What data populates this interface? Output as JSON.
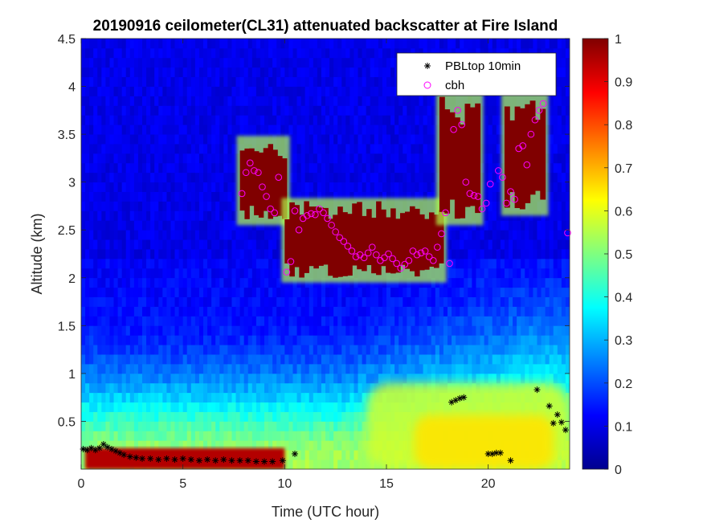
{
  "chart_data": {
    "type": "heatmap",
    "title": "20190916 ceilometer(CL31) attenuated backscatter at Fire Island",
    "xlabel": "Time (UTC hour)",
    "ylabel": "Altitude (km)",
    "xlim": [
      0,
      24
    ],
    "ylim": [
      0,
      4.5
    ],
    "xticks": [
      0,
      5,
      10,
      15,
      20
    ],
    "yticks": [
      0.5,
      1,
      1.5,
      2,
      2.5,
      3,
      3.5,
      4,
      4.5
    ],
    "colorbar": {
      "range": [
        0,
        1
      ],
      "ticks": [
        0,
        0.1,
        0.2,
        0.3,
        0.4,
        0.5,
        0.6,
        0.7,
        0.8,
        0.9,
        1
      ],
      "colormap": "jet"
    },
    "legend": {
      "location": "top-right",
      "entries": [
        {
          "label": "PBLtop 10min",
          "marker": "asterisk",
          "color": "#000000"
        },
        {
          "label": "cbh",
          "marker": "circle",
          "color": "#ff00ff"
        }
      ]
    },
    "series": [
      {
        "name": "PBLtop 10min",
        "x": [
          0.1,
          0.3,
          0.5,
          0.7,
          0.9,
          1.1,
          1.3,
          1.5,
          1.7,
          1.9,
          2.1,
          2.4,
          2.7,
          3.0,
          3.4,
          3.8,
          4.2,
          4.6,
          5.0,
          5.4,
          5.8,
          6.2,
          6.6,
          7.0,
          7.4,
          7.8,
          8.2,
          8.6,
          9.0,
          9.4,
          9.9,
          10.5,
          18.2,
          18.4,
          18.6,
          18.8,
          20.0,
          20.2,
          20.4,
          20.6,
          21.1,
          22.4,
          23.0,
          23.2,
          23.4,
          23.6,
          23.8
        ],
        "y": [
          0.21,
          0.2,
          0.22,
          0.2,
          0.22,
          0.26,
          0.23,
          0.21,
          0.19,
          0.17,
          0.15,
          0.13,
          0.12,
          0.11,
          0.11,
          0.1,
          0.11,
          0.1,
          0.11,
          0.1,
          0.09,
          0.1,
          0.09,
          0.1,
          0.09,
          0.09,
          0.09,
          0.08,
          0.08,
          0.08,
          0.09,
          0.16,
          0.7,
          0.72,
          0.74,
          0.75,
          0.16,
          0.16,
          0.17,
          0.17,
          0.09,
          0.83,
          0.66,
          0.48,
          0.57,
          0.49,
          0.41
        ]
      },
      {
        "name": "cbh",
        "x": [
          7.9,
          8.1,
          8.3,
          8.5,
          8.7,
          8.9,
          9.1,
          9.3,
          9.5,
          9.7,
          10.1,
          10.3,
          10.5,
          10.7,
          10.9,
          11.1,
          11.3,
          11.5,
          11.7,
          11.9,
          12.1,
          12.3,
          12.5,
          12.7,
          12.9,
          13.1,
          13.3,
          13.5,
          13.7,
          13.9,
          14.1,
          14.3,
          14.5,
          14.7,
          14.9,
          15.1,
          15.3,
          15.5,
          15.7,
          15.9,
          16.1,
          16.3,
          16.5,
          16.7,
          16.9,
          17.1,
          17.3,
          17.5,
          17.7,
          17.9,
          18.1,
          18.3,
          18.5,
          18.7,
          18.9,
          19.1,
          19.3,
          19.5,
          19.7,
          19.9,
          20.1,
          20.5,
          20.7,
          20.9,
          21.1,
          21.3,
          21.5,
          21.7,
          21.9,
          22.1,
          22.3,
          22.5,
          22.7,
          23.9
        ],
        "y": [
          2.88,
          3.1,
          3.2,
          3.12,
          3.1,
          2.95,
          2.85,
          2.72,
          2.68,
          3.05,
          2.06,
          2.17,
          2.7,
          2.5,
          2.62,
          2.65,
          2.67,
          2.66,
          2.72,
          2.68,
          2.62,
          2.55,
          2.48,
          2.42,
          2.38,
          2.33,
          2.28,
          2.22,
          2.24,
          2.21,
          2.26,
          2.32,
          2.24,
          2.18,
          2.21,
          2.25,
          2.2,
          2.15,
          2.1,
          2.14,
          2.18,
          2.28,
          2.24,
          2.26,
          2.28,
          2.22,
          2.18,
          2.32,
          2.46,
          2.68,
          2.15,
          3.55,
          3.75,
          3.6,
          3.0,
          2.88,
          2.86,
          2.85,
          2.72,
          2.78,
          2.98,
          3.12,
          3.05,
          2.78,
          2.9,
          2.82,
          3.35,
          3.38,
          3.18,
          3.5,
          3.65,
          3.75,
          3.82,
          2.47
        ]
      }
    ],
    "features": [
      {
        "name": "surface-layer",
        "x": [
          0.2,
          10.0
        ],
        "y": [
          0.0,
          0.22
        ],
        "value": 0.95
      },
      {
        "name": "cloud-layer-a",
        "x": [
          7.8,
          10.1
        ],
        "y": [
          2.6,
          3.45
        ],
        "value": 1.0
      },
      {
        "name": "cloud-layer-b",
        "x": [
          10.0,
          17.8
        ],
        "y": [
          2.0,
          2.8
        ],
        "value": 1.0
      },
      {
        "name": "cloud-layer-c",
        "x": [
          17.6,
          19.6
        ],
        "y": [
          2.6,
          3.9
        ],
        "value": 1.0
      },
      {
        "name": "cloud-layer-d",
        "x": [
          20.8,
          22.8
        ],
        "y": [
          2.7,
          3.9
        ],
        "value": 1.0
      },
      {
        "name": "aerosol-layer",
        "x": [
          14.0,
          24.0
        ],
        "y": [
          0.0,
          0.9
        ],
        "value": 0.65
      }
    ]
  }
}
